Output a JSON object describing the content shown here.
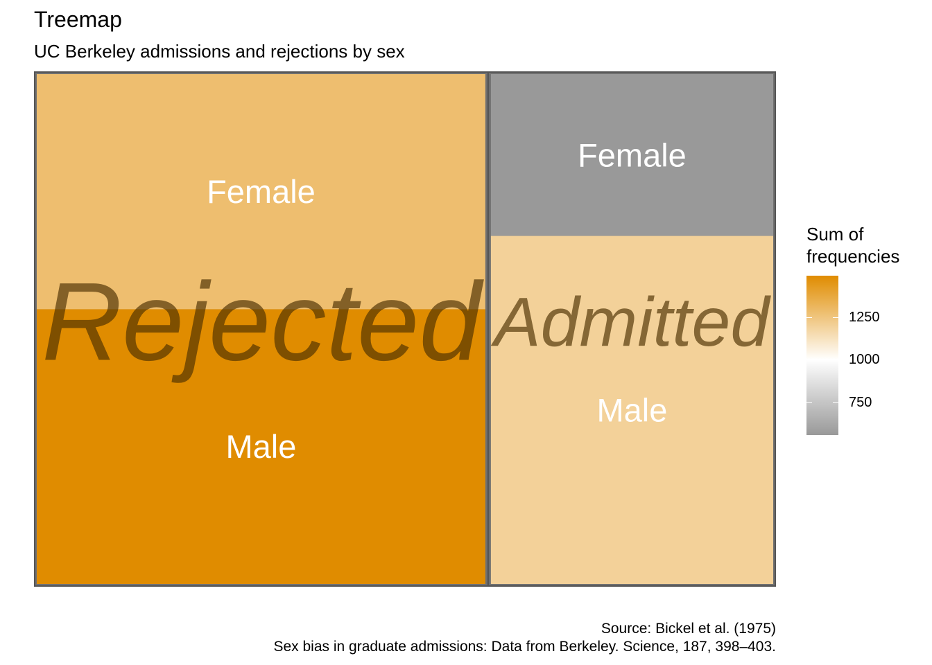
{
  "title": "Treemap",
  "subtitle": "UC Berkeley admissions and rejections by sex",
  "caption": {
    "line1": "Source: Bickel et al. (1975)",
    "line2": "Sex bias in graduate admissions: Data from Berkeley. Science, 187, 398–403."
  },
  "chart_data": {
    "type": "treemap",
    "title": "Treemap",
    "subtitle": "UC Berkeley admissions and rejections by sex",
    "groups": [
      {
        "name": "Rejected",
        "children": [
          {
            "name": "Female",
            "value": 1278
          },
          {
            "name": "Male",
            "value": 1493
          }
        ]
      },
      {
        "name": "Admitted",
        "children": [
          {
            "name": "Female",
            "value": 557
          },
          {
            "name": "Male",
            "value": 1198
          }
        ]
      }
    ],
    "legend": {
      "title": "Sum of\nfrequencies",
      "ticks": [
        1250,
        1000,
        750
      ],
      "range": [
        557,
        1493
      ],
      "gradient": {
        "low": "#999999",
        "mid": "#ffffff",
        "high": "#e08c00",
        "midpoint": 1000
      }
    },
    "colors": {
      "group_border": "#707070",
      "tile_label": "#ffffff",
      "group_label": "#4a2e00"
    }
  }
}
